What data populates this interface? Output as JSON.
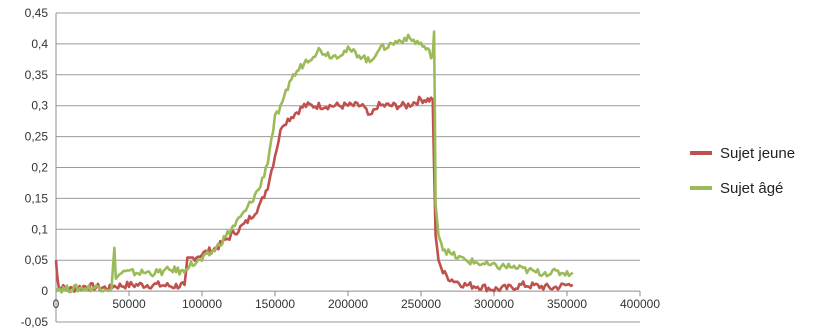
{
  "chart_data": {
    "type": "line",
    "title": "",
    "xlabel": "",
    "ylabel": "",
    "xlim": [
      0,
      400000
    ],
    "ylim": [
      -0.05,
      0.45
    ],
    "x_ticks": [
      "0",
      "50000",
      "100000",
      "150000",
      "200000",
      "250000",
      "300000",
      "350000",
      "400000"
    ],
    "y_ticks": [
      "-0,05",
      "0",
      "0,05",
      "0,1",
      "0,15",
      "0,2",
      "0,25",
      "0,3",
      "0,35",
      "0,4",
      "0,45"
    ],
    "grid": true,
    "legend_position": "right",
    "series": [
      {
        "name": "Sujet jeune",
        "color": "#c0504d",
        "x": [
          0,
          1000,
          2000,
          5000,
          10000,
          20000,
          30000,
          38000,
          40000,
          50000,
          60000,
          70000,
          80000,
          88000,
          90000,
          100000,
          110000,
          120000,
          130000,
          140000,
          145000,
          150000,
          155000,
          160000,
          170000,
          180000,
          190000,
          200000,
          210000,
          215000,
          220000,
          230000,
          240000,
          250000,
          258000,
          260000,
          262000,
          265000,
          270000,
          280000,
          290000,
          300000,
          310000,
          320000,
          330000,
          340000,
          350000,
          354000
        ],
        "y": [
          0.05,
          0.02,
          0.005,
          0.005,
          0.003,
          0.008,
          0.006,
          0.004,
          0.008,
          0.01,
          0.01,
          0.01,
          0.008,
          0.01,
          0.05,
          0.06,
          0.07,
          0.09,
          0.11,
          0.14,
          0.17,
          0.22,
          0.27,
          0.28,
          0.3,
          0.3,
          0.3,
          0.3,
          0.3,
          0.28,
          0.3,
          0.3,
          0.3,
          0.31,
          0.31,
          0.09,
          0.05,
          0.03,
          0.02,
          0.01,
          0.008,
          0.003,
          0.005,
          0.01,
          0.008,
          0.005,
          0.01,
          0.01
        ]
      },
      {
        "name": "Sujet âgé",
        "color": "#9bbb59",
        "x": [
          0,
          5000,
          10000,
          20000,
          30000,
          38000,
          40000,
          41000,
          45000,
          50000,
          60000,
          70000,
          80000,
          88000,
          90000,
          100000,
          110000,
          120000,
          130000,
          140000,
          145000,
          150000,
          155000,
          160000,
          170000,
          180000,
          190000,
          200000,
          210000,
          215000,
          220000,
          230000,
          240000,
          250000,
          258000,
          259000,
          260000,
          262000,
          265000,
          270000,
          280000,
          290000,
          300000,
          310000,
          320000,
          330000,
          340000,
          350000,
          354000
        ],
        "y": [
          0.005,
          0.003,
          0.004,
          0.005,
          0.006,
          0.004,
          0.07,
          0.02,
          0.03,
          0.03,
          0.03,
          0.03,
          0.035,
          0.03,
          0.04,
          0.05,
          0.07,
          0.1,
          0.13,
          0.17,
          0.21,
          0.28,
          0.3,
          0.34,
          0.37,
          0.39,
          0.38,
          0.39,
          0.38,
          0.37,
          0.39,
          0.4,
          0.41,
          0.4,
          0.38,
          0.42,
          0.14,
          0.09,
          0.07,
          0.06,
          0.05,
          0.045,
          0.04,
          0.04,
          0.035,
          0.03,
          0.03,
          0.03,
          0.03
        ]
      }
    ]
  }
}
